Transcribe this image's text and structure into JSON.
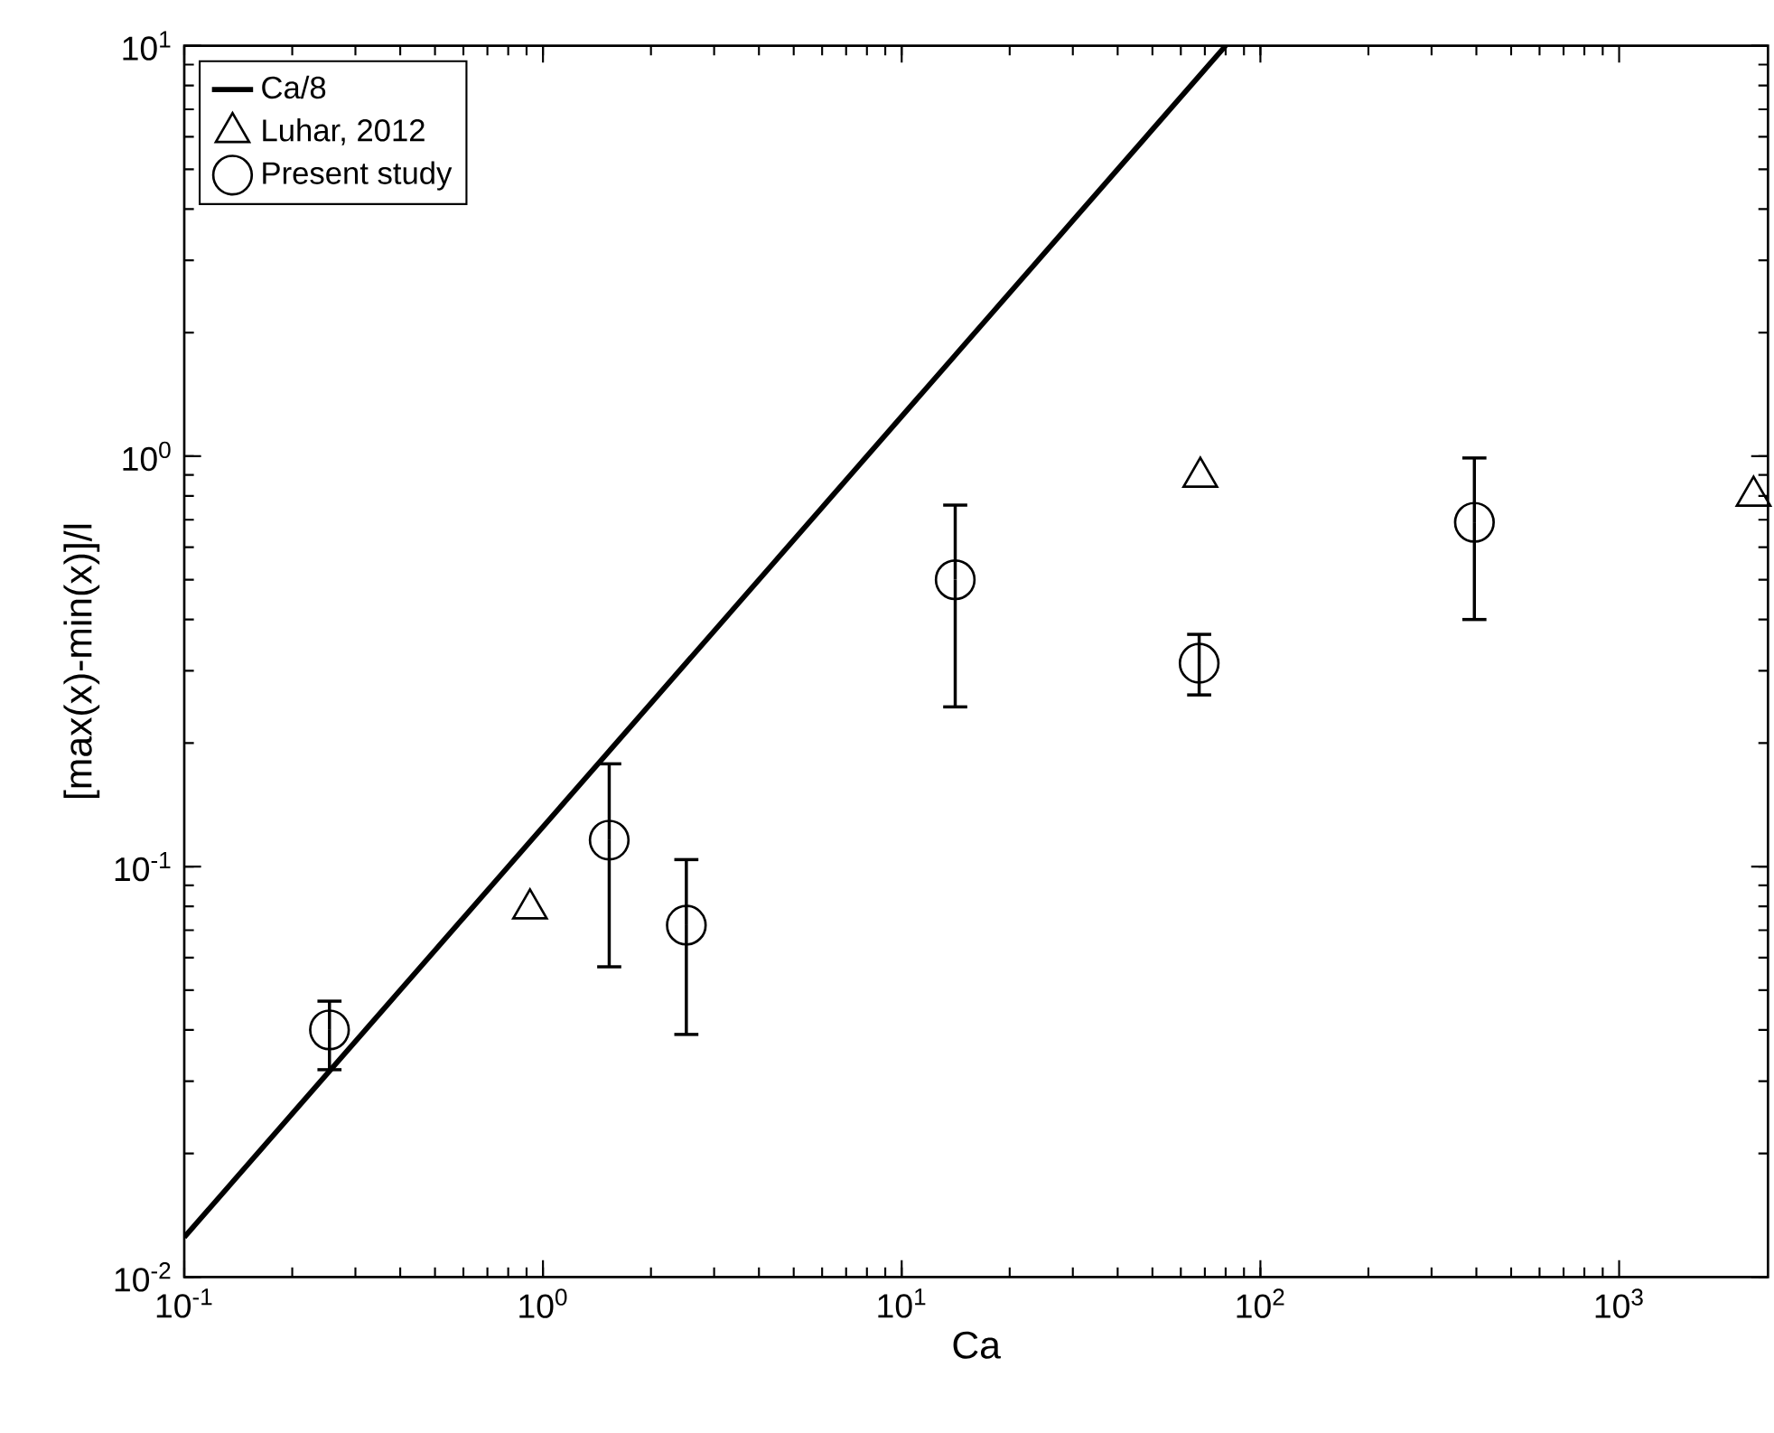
{
  "chart_data": {
    "type": "scatter",
    "xlabel": "Ca",
    "ylabel": "[max(x)-min(x)]/l",
    "log": "xy",
    "xlim": [
      0.1,
      2600
    ],
    "ylim": [
      0.01,
      10
    ],
    "xticks": [
      {
        "value": 0.1,
        "label": "10$^{-1}$"
      },
      {
        "value": 1,
        "label": "10$^{0}$"
      },
      {
        "value": 10,
        "label": "10$^{1}$"
      },
      {
        "value": 100,
        "label": "10$^{2}$"
      },
      {
        "value": 1000,
        "label": "10$^{3}$"
      }
    ],
    "yticks": [
      {
        "value": 0.01,
        "label": "10$^{-2}$"
      },
      {
        "value": 0.1,
        "label": "10$^{-1}$"
      },
      {
        "value": 1,
        "label": "10$^{0}$"
      },
      {
        "value": 10,
        "label": "10$^{1}$"
      }
    ],
    "legend": "top left",
    "grid": false,
    "series": [
      {
        "name": "Ca/8",
        "type": "line",
        "marker": "none",
        "color": "#000000",
        "x": [
          0.1,
          80
        ],
        "values": [
          0.0125,
          10
        ]
      },
      {
        "name": "Luhar, 2012",
        "marker": "triangle",
        "color": "#000000",
        "x": [
          0.92,
          68,
          2370
        ],
        "values": [
          0.079,
          0.89,
          0.8
        ]
      },
      {
        "name": "Present study",
        "marker": "circle",
        "color": "#000000",
        "x": [
          0.254,
          1.53,
          2.51,
          14.1,
          67.5,
          395
        ],
        "values": [
          0.04,
          0.116,
          0.072,
          0.5,
          0.313,
          0.69
        ],
        "errors": [
          [
            0.032,
            0.047
          ],
          [
            0.057,
            0.178
          ],
          [
            0.039,
            0.104
          ],
          [
            0.245,
            0.76
          ],
          [
            0.262,
            0.368
          ],
          [
            0.4,
            0.99
          ]
        ]
      }
    ]
  }
}
